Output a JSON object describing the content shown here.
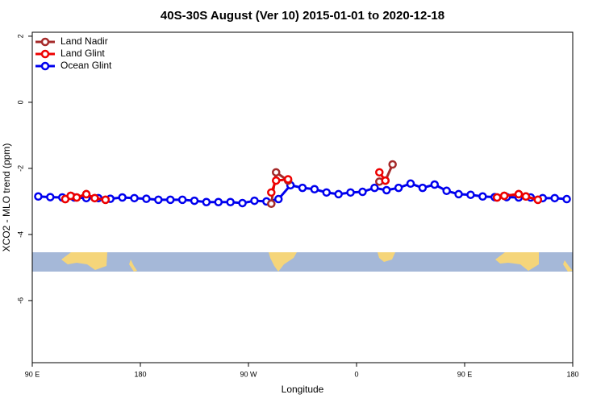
{
  "chart_data": {
    "type": "line",
    "title": "40S-30S August (Ver 10)   2015-01-01 to 2020-12-18",
    "x_label": "Longitude",
    "y_label": "XCO2 - MLO trend (ppm)",
    "xlim": [
      90,
      540
    ],
    "ylim": [
      -7.88,
      2.12
    ],
    "xticks": [
      {
        "value": 90,
        "label": "90 E"
      },
      180,
      {
        "value": 270,
        "label": "90 W"
      },
      {
        "value": 360,
        "label": "0"
      },
      {
        "value": 450,
        "label": "90 E"
      },
      {
        "value": 540,
        "label": "180"
      }
    ],
    "yticks": [
      2,
      0,
      -2,
      -4,
      -6
    ],
    "legend": "top-left",
    "series": [
      {
        "name": "Land Nadir",
        "color": "#a52a2a",
        "x": [
          117.5,
          122,
          127,
          135,
          142,
          151,
          null,
          289,
          293,
          303,
          null,
          379,
          384,
          390,
          null,
          477,
          483,
          495,
          501,
          511
        ],
        "values": [
          -2.93,
          -2.83,
          -2.88,
          -2.78,
          -2.9,
          -2.95,
          null,
          -3.07,
          -2.12,
          -2.37,
          null,
          -2.4,
          -2.37,
          -1.88,
          null,
          -2.88,
          -2.83,
          -2.78,
          -2.85,
          -2.95
        ]
      },
      {
        "name": "Land Glint",
        "color": "#ee0000",
        "x": [
          117.5,
          122,
          127,
          135,
          142,
          151,
          null,
          289,
          293,
          303,
          null,
          379,
          384,
          null,
          477,
          483,
          495,
          501,
          511
        ],
        "values": [
          -2.93,
          -2.83,
          -2.88,
          -2.78,
          -2.9,
          -2.95,
          null,
          -2.73,
          -2.37,
          -2.33,
          null,
          -2.12,
          -2.37,
          null,
          -2.88,
          -2.83,
          -2.78,
          -2.85,
          -2.95
        ]
      },
      {
        "name": "Ocean Glint",
        "color": "#0000ee",
        "x": [
          95,
          105,
          115,
          125,
          135,
          145,
          155,
          165,
          175,
          185,
          195,
          205,
          215,
          225,
          235,
          245,
          255,
          265,
          275,
          285,
          295,
          305,
          315,
          325,
          335,
          345,
          355,
          365,
          375,
          385,
          395,
          405,
          415,
          425,
          435,
          445,
          455,
          465,
          475,
          485,
          495,
          505,
          515,
          525,
          535
        ],
        "values": [
          -2.85,
          -2.87,
          -2.88,
          -2.88,
          -2.9,
          -2.9,
          -2.92,
          -2.88,
          -2.9,
          -2.92,
          -2.95,
          -2.95,
          -2.95,
          -2.98,
          -3.02,
          -3.02,
          -3.02,
          -3.05,
          -2.98,
          -3.0,
          -2.93,
          -2.51,
          -2.59,
          -2.63,
          -2.73,
          -2.78,
          -2.73,
          -2.71,
          -2.59,
          -2.66,
          -2.59,
          -2.46,
          -2.59,
          -2.49,
          -2.68,
          -2.78,
          -2.8,
          -2.85,
          -2.87,
          -2.87,
          -2.88,
          -2.88,
          -2.9,
          -2.9,
          -2.93
        ]
      }
    ]
  }
}
